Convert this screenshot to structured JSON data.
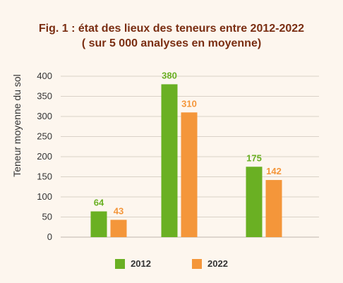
{
  "chart_data": {
    "type": "bar",
    "title_line1": "Fig. 1 : état des lieux des teneurs entre 2012-2022",
    "title_line2": "( sur 5 000 analyses en moyenne)",
    "ylabel": "Teneur moyenne du sol",
    "xlabel": "",
    "ylim": [
      0,
      400
    ],
    "yticks": [
      0,
      50,
      100,
      150,
      200,
      250,
      300,
      350,
      400
    ],
    "categories": [
      "",
      "",
      ""
    ],
    "series": [
      {
        "name": "2012",
        "values": [
          64,
          380,
          175
        ],
        "color": "#6ab023"
      },
      {
        "name": "2022",
        "values": [
          43,
          310,
          142
        ],
        "color": "#f4963a"
      }
    ],
    "grid": true,
    "legend_position": "bottom"
  }
}
